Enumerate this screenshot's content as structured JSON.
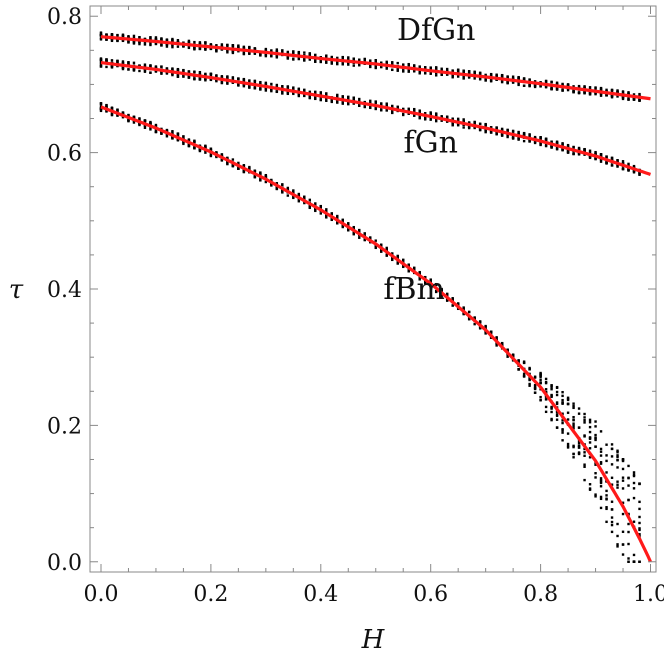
{
  "chart_data": {
    "type": "scatter",
    "xlabel": "H",
    "ylabel": "τ",
    "xlim": [
      -0.02,
      1.01
    ],
    "ylim": [
      -0.015,
      0.815
    ],
    "x_ticks": [
      "0.0",
      "0.2",
      "0.4",
      "0.6",
      "0.8",
      "1.0"
    ],
    "y_ticks": [
      "0.0",
      "0.2",
      "0.4",
      "0.6",
      "0.8"
    ],
    "grid": false,
    "legend": "none",
    "annotations": [
      {
        "text": "DfGn",
        "x": 0.61,
        "y": 0.765
      },
      {
        "text": "fGn",
        "x": 0.6,
        "y": 0.6
      },
      {
        "text": "fBm",
        "x": 0.57,
        "y": 0.385
      }
    ],
    "series": [
      {
        "x": [
          0.0,
          0.1,
          0.2,
          0.3,
          0.4,
          0.5,
          0.6,
          0.7,
          0.8,
          0.9,
          1.0
        ],
        "fit": [
          0.77,
          0.763,
          0.755,
          0.747,
          0.738,
          0.73,
          0.72,
          0.711,
          0.701,
          0.69,
          0.679
        ]
      },
      {
        "x": [
          0.0,
          0.1,
          0.2,
          0.3,
          0.4,
          0.5,
          0.6,
          0.7,
          0.8,
          0.9,
          1.0
        ],
        "fit": [
          0.732,
          0.722,
          0.71,
          0.697,
          0.683,
          0.669,
          0.653,
          0.636,
          0.617,
          0.595,
          0.568
        ]
      },
      {
        "x": [
          0.0,
          0.1,
          0.2,
          0.3,
          0.4,
          0.5,
          0.6,
          0.7,
          0.8,
          0.9,
          0.95,
          0.98,
          0.995,
          1.0
        ],
        "fit": [
          0.667,
          0.636,
          0.601,
          0.561,
          0.516,
          0.466,
          0.408,
          0.34,
          0.256,
          0.148,
          0.081,
          0.034,
          0.009,
          0.0
        ]
      }
    ]
  },
  "colors": {
    "fit_line": "#ff1a1a",
    "points": "#000000",
    "frame": "#888888"
  }
}
